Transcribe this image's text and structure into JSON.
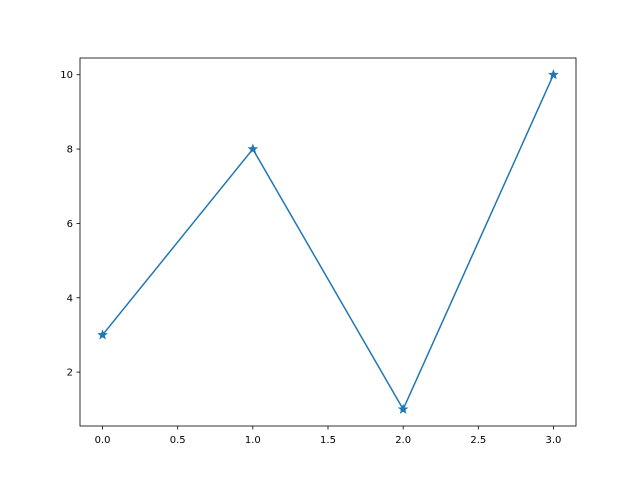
{
  "chart_data": {
    "type": "line",
    "title": "",
    "xlabel": "",
    "ylabel": "",
    "x": [
      0,
      1,
      2,
      3
    ],
    "series": [
      {
        "values": [
          3,
          8,
          1,
          10
        ],
        "color": "#1f77b4",
        "marker": "star"
      }
    ],
    "xlim": [
      -0.15,
      3.15
    ],
    "ylim": [
      0.55,
      10.45
    ],
    "xticks": [
      0.0,
      0.5,
      1.0,
      1.5,
      2.0,
      2.5,
      3.0
    ],
    "xtick_labels": [
      "0.0",
      "0.5",
      "1.0",
      "1.5",
      "2.0",
      "2.5",
      "3.0"
    ],
    "yticks": [
      2,
      4,
      6,
      8,
      10
    ],
    "ytick_labels": [
      "2",
      "4",
      "6",
      "8",
      "10"
    ],
    "grid": false,
    "legend": "none"
  }
}
